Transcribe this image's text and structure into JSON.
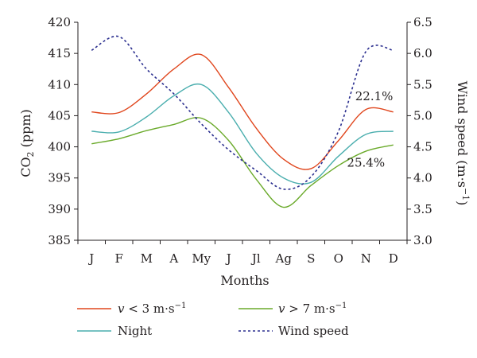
{
  "chart_data": {
    "type": "line",
    "categories": [
      "J",
      "F",
      "M",
      "A",
      "My",
      "J",
      "Jl",
      "Ag",
      "S",
      "O",
      "N",
      "D"
    ],
    "xlabel": "Months",
    "ylabel": {
      "main": "CO",
      "sub": "2",
      "unit": " (ppm)"
    },
    "y2label": {
      "main": "Wind speed (m·s",
      "sup": "−1",
      "close": ")"
    },
    "ylim": [
      385,
      420
    ],
    "y2lim": [
      3.0,
      6.5
    ],
    "yticks": [
      385,
      390,
      395,
      400,
      405,
      410,
      415,
      420
    ],
    "y2ticks": [
      3.0,
      3.5,
      4.0,
      4.5,
      5.0,
      5.5,
      6.0,
      6.5
    ],
    "y2tick_labels": [
      "3.0",
      "3.5",
      "4.0",
      "4.5",
      "5.0",
      "5.5",
      "6.0",
      "6.5"
    ],
    "series": [
      {
        "key": "low",
        "axis": "left",
        "color": "#e0461d",
        "dash": "none",
        "values": [
          405.6,
          405.5,
          408.5,
          412.5,
          414.8,
          409.5,
          403.0,
          398.0,
          396.5,
          401.0,
          406.0,
          405.6
        ]
      },
      {
        "key": "night",
        "axis": "left",
        "color": "#4aaeae",
        "dash": "none",
        "values": [
          402.5,
          402.4,
          404.8,
          408.2,
          410.0,
          405.5,
          399.0,
          395.0,
          394.3,
          398.5,
          402.0,
          402.5
        ]
      },
      {
        "key": "high",
        "axis": "left",
        "color": "#6aaa2a",
        "dash": "none",
        "values": [
          400.5,
          401.3,
          402.6,
          403.6,
          404.6,
          401.0,
          394.8,
          390.3,
          393.8,
          397.0,
          399.3,
          400.3
        ]
      },
      {
        "key": "wind",
        "axis": "right",
        "color": "#2b2f8f",
        "dash": "3,3",
        "values": [
          6.05,
          6.27,
          5.75,
          5.35,
          4.87,
          4.45,
          4.12,
          3.82,
          4.02,
          4.75,
          6.03,
          6.05
        ]
      }
    ],
    "annotations": [
      {
        "text": "22.1%",
        "month_index": 10.3,
        "y": 407.5
      },
      {
        "text": "25.4%",
        "month_index": 10.0,
        "y": 396.8
      }
    ],
    "legend": {
      "placement": "bottom",
      "items": [
        {
          "series": "low",
          "prefix": "v",
          "mid": " < 3 m·s",
          "sup": "−1"
        },
        {
          "series": "high",
          "prefix": "v",
          "mid": " > 7 m·s",
          "sup": "−1"
        },
        {
          "series": "night",
          "label": "Night"
        },
        {
          "series": "wind",
          "label": "Wind speed"
        }
      ]
    },
    "grid": false
  }
}
